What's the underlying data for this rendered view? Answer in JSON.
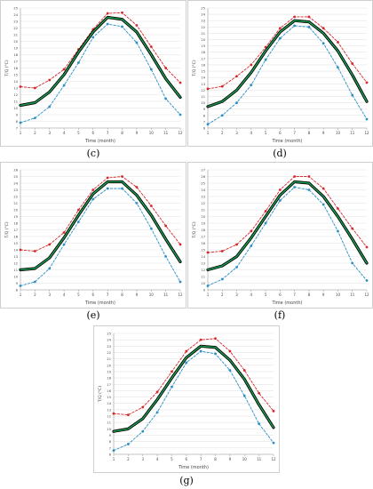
{
  "chart_data": [
    {
      "label": "(c)",
      "type": "line",
      "xlabel": "Time (month)",
      "ylabel": "T/Q (°C)",
      "xlim": [
        1,
        12
      ],
      "ylim": [
        7,
        25
      ],
      "grid": true,
      "x": [
        1,
        2,
        3,
        4,
        5,
        6,
        7,
        8,
        9,
        10,
        11,
        12
      ],
      "series": [
        {
          "values": [
            13.2,
            13.0,
            14.2,
            15.8,
            18.8,
            21.8,
            24.2,
            24.3,
            22.4,
            19.2,
            16.0,
            13.8
          ],
          "color": "#d62728",
          "style": "dashed",
          "marker": "circle"
        },
        {
          "values": [
            10.4,
            10.8,
            12.4,
            15.0,
            18.4,
            21.4,
            23.6,
            23.3,
            21.4,
            18.0,
            14.4,
            11.6
          ],
          "color": "#000000",
          "style": "solid",
          "width": "thick"
        },
        {
          "values": [
            10.4,
            10.8,
            12.4,
            15.0,
            18.4,
            21.4,
            23.6,
            23.3,
            21.4,
            18.0,
            14.4,
            11.6
          ],
          "color": "#1a9a50",
          "style": "solid",
          "width": "medium"
        },
        {
          "values": [
            7.8,
            8.5,
            10.2,
            13.4,
            16.8,
            20.6,
            22.6,
            22.2,
            19.8,
            15.8,
            11.4,
            9.0
          ],
          "color": "#2a8fc4",
          "style": "dashed",
          "marker": "circle"
        }
      ]
    },
    {
      "label": "(d)",
      "type": "line",
      "xlabel": "Time (month)",
      "ylabel": "T/Q (°C)",
      "xlim": [
        1,
        12
      ],
      "ylim": [
        6,
        25
      ],
      "grid": true,
      "x": [
        1,
        2,
        3,
        4,
        5,
        6,
        7,
        8,
        9,
        10,
        11,
        12
      ],
      "series": [
        {
          "values": [
            12.2,
            12.6,
            14.2,
            16.0,
            18.8,
            21.8,
            23.6,
            23.6,
            21.8,
            19.6,
            16.2,
            13.2
          ],
          "color": "#d62728",
          "style": "dashed",
          "marker": "circle"
        },
        {
          "values": [
            9.4,
            10.2,
            12.0,
            14.8,
            18.2,
            21.2,
            23.0,
            22.8,
            21.0,
            18.2,
            14.4,
            10.2
          ],
          "color": "#000000",
          "style": "solid",
          "width": "thick"
        },
        {
          "values": [
            9.4,
            10.2,
            12.0,
            14.8,
            18.2,
            21.2,
            23.0,
            22.8,
            21.0,
            18.2,
            14.4,
            10.2
          ],
          "color": "#1a9a50",
          "style": "solid",
          "width": "medium"
        },
        {
          "values": [
            6.6,
            8.0,
            10.0,
            12.8,
            16.8,
            20.2,
            22.2,
            22.0,
            19.4,
            15.6,
            11.2,
            7.4
          ],
          "color": "#2a8fc4",
          "style": "dashed",
          "marker": "circle"
        }
      ]
    },
    {
      "label": "(e)",
      "type": "line",
      "xlabel": "Time (month)",
      "ylabel": "T/Q (°C)",
      "xlim": [
        1,
        12
      ],
      "ylim": [
        8,
        26
      ],
      "grid": true,
      "x": [
        1,
        2,
        3,
        4,
        5,
        6,
        7,
        8,
        9,
        10,
        11,
        12
      ],
      "series": [
        {
          "values": [
            14.0,
            13.8,
            14.8,
            16.6,
            20.0,
            23.0,
            24.8,
            25.0,
            23.4,
            20.6,
            17.6,
            14.8
          ],
          "color": "#d62728",
          "style": "dashed",
          "marker": "circle"
        },
        {
          "values": [
            11.0,
            11.2,
            12.8,
            15.8,
            19.2,
            22.4,
            24.2,
            24.2,
            22.2,
            19.2,
            15.6,
            12.2
          ],
          "color": "#000000",
          "style": "solid",
          "width": "thick"
        },
        {
          "values": [
            11.0,
            11.2,
            12.8,
            15.8,
            19.2,
            22.4,
            24.2,
            24.2,
            22.2,
            19.2,
            15.6,
            12.2
          ],
          "color": "#1a9a50",
          "style": "solid",
          "width": "medium"
        },
        {
          "values": [
            8.6,
            9.2,
            11.2,
            14.8,
            18.2,
            21.6,
            23.2,
            23.2,
            21.0,
            17.2,
            13.0,
            9.2
          ],
          "color": "#2a8fc4",
          "style": "dashed",
          "marker": "circle"
        }
      ]
    },
    {
      "label": "(f)",
      "type": "line",
      "xlabel": "Time (month)",
      "ylabel": "T/Q (°C)",
      "xlim": [
        1,
        12
      ],
      "ylim": [
        9,
        27
      ],
      "grid": true,
      "x": [
        1,
        2,
        3,
        4,
        5,
        6,
        7,
        8,
        9,
        10,
        11,
        12
      ],
      "series": [
        {
          "values": [
            14.6,
            14.8,
            15.8,
            17.8,
            20.8,
            24.0,
            26.0,
            26.0,
            24.2,
            21.2,
            18.2,
            15.4
          ],
          "color": "#d62728",
          "style": "dashed",
          "marker": "circle"
        },
        {
          "values": [
            12.0,
            12.6,
            14.0,
            16.8,
            20.0,
            23.2,
            25.2,
            25.0,
            23.0,
            20.0,
            16.6,
            13.0
          ],
          "color": "#000000",
          "style": "solid",
          "width": "thick"
        },
        {
          "values": [
            12.0,
            12.6,
            14.0,
            16.8,
            20.0,
            23.2,
            25.2,
            25.0,
            23.0,
            20.0,
            16.6,
            13.0
          ],
          "color": "#1a9a50",
          "style": "solid",
          "width": "medium"
        },
        {
          "values": [
            9.6,
            10.6,
            12.4,
            15.6,
            19.0,
            22.4,
            24.4,
            24.0,
            21.8,
            17.8,
            13.0,
            10.4
          ],
          "color": "#2a8fc4",
          "style": "dashed",
          "marker": "circle"
        }
      ]
    },
    {
      "label": "(g)",
      "type": "line",
      "xlabel": "Time (month)",
      "ylabel": "T/Q (°C)",
      "xlim": [
        1,
        12
      ],
      "ylim": [
        6,
        25
      ],
      "grid": true,
      "x": [
        1,
        2,
        3,
        4,
        5,
        6,
        7,
        8,
        9,
        10,
        11,
        12
      ],
      "series": [
        {
          "values": [
            12.4,
            12.2,
            13.4,
            15.8,
            19.0,
            22.2,
            24.0,
            24.2,
            22.2,
            19.2,
            15.6,
            12.8
          ],
          "color": "#d62728",
          "style": "dashed",
          "marker": "circle"
        },
        {
          "values": [
            9.6,
            10.0,
            11.6,
            14.6,
            18.0,
            21.2,
            23.0,
            22.8,
            20.8,
            17.8,
            13.8,
            10.2
          ],
          "color": "#000000",
          "style": "solid",
          "width": "thick"
        },
        {
          "values": [
            9.6,
            10.0,
            11.6,
            14.6,
            18.0,
            21.2,
            23.0,
            22.8,
            20.8,
            17.8,
            13.8,
            10.2
          ],
          "color": "#1a9a50",
          "style": "solid",
          "width": "medium"
        },
        {
          "values": [
            6.6,
            7.6,
            9.6,
            12.6,
            16.6,
            20.4,
            22.2,
            21.8,
            19.2,
            15.2,
            10.8,
            7.8
          ],
          "color": "#2a8fc4",
          "style": "dashed",
          "marker": "circle"
        }
      ]
    }
  ]
}
